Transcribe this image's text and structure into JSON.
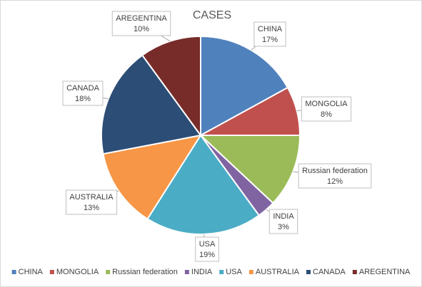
{
  "chart_data": {
    "type": "pie",
    "title": "CASES",
    "categories": [
      "CHINA",
      "MONGOLIA",
      "Russian federation",
      "INDIA",
      "USA",
      "AUSTRALIA",
      "CANADA",
      "AREGENTINA"
    ],
    "values": [
      17,
      8,
      12,
      3,
      19,
      13,
      18,
      10
    ],
    "value_labels": [
      "17%",
      "8%",
      "12%",
      "3%",
      "19%",
      "13%",
      "18%",
      "10%"
    ],
    "colors": [
      "#4f81bd",
      "#c0504d",
      "#9bbb59",
      "#8064a2",
      "#4bacc6",
      "#f79646",
      "#2c4d75",
      "#772c2a"
    ],
    "legend": "bottom"
  }
}
